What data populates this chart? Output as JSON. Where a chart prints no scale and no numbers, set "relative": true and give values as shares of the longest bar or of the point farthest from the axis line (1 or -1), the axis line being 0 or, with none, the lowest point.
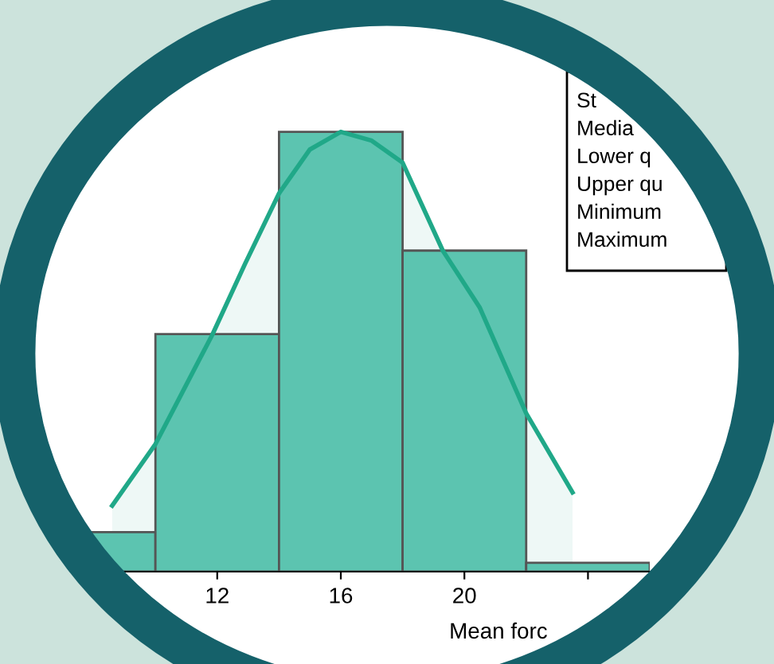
{
  "chart_data": {
    "type": "histogram",
    "relative": true,
    "xlabel": "Mean forc",
    "bins": [
      6,
      10,
      14,
      18,
      22,
      26
    ],
    "values": [
      0.09,
      0.54,
      1.0,
      0.73,
      0.02
    ],
    "color": "#5cc4b0",
    "series": [
      {
        "type": "area",
        "color": "#20a888",
        "x": [
          8.6,
          10.0,
          11.85,
          12.9,
          14.0,
          15.0,
          16.0,
          17.0,
          18.0,
          19.3,
          20.5,
          22.0,
          23.5
        ],
        "values": [
          0.15,
          0.29,
          0.54,
          0.7,
          0.86,
          0.96,
          1.0,
          0.98,
          0.93,
          0.73,
          0.6,
          0.36,
          0.18
        ]
      }
    ],
    "xlim": [
      6,
      26
    ],
    "xticks": [
      12,
      16,
      20,
      {
        "value": 24,
        "label": null
      }
    ],
    "tick_labels": "x",
    "grid": false,
    "legend": false,
    "annotations": [
      "St",
      "Media",
      "Lower q",
      "Upper qu",
      "Minimum",
      "Maximum"
    ]
  }
}
